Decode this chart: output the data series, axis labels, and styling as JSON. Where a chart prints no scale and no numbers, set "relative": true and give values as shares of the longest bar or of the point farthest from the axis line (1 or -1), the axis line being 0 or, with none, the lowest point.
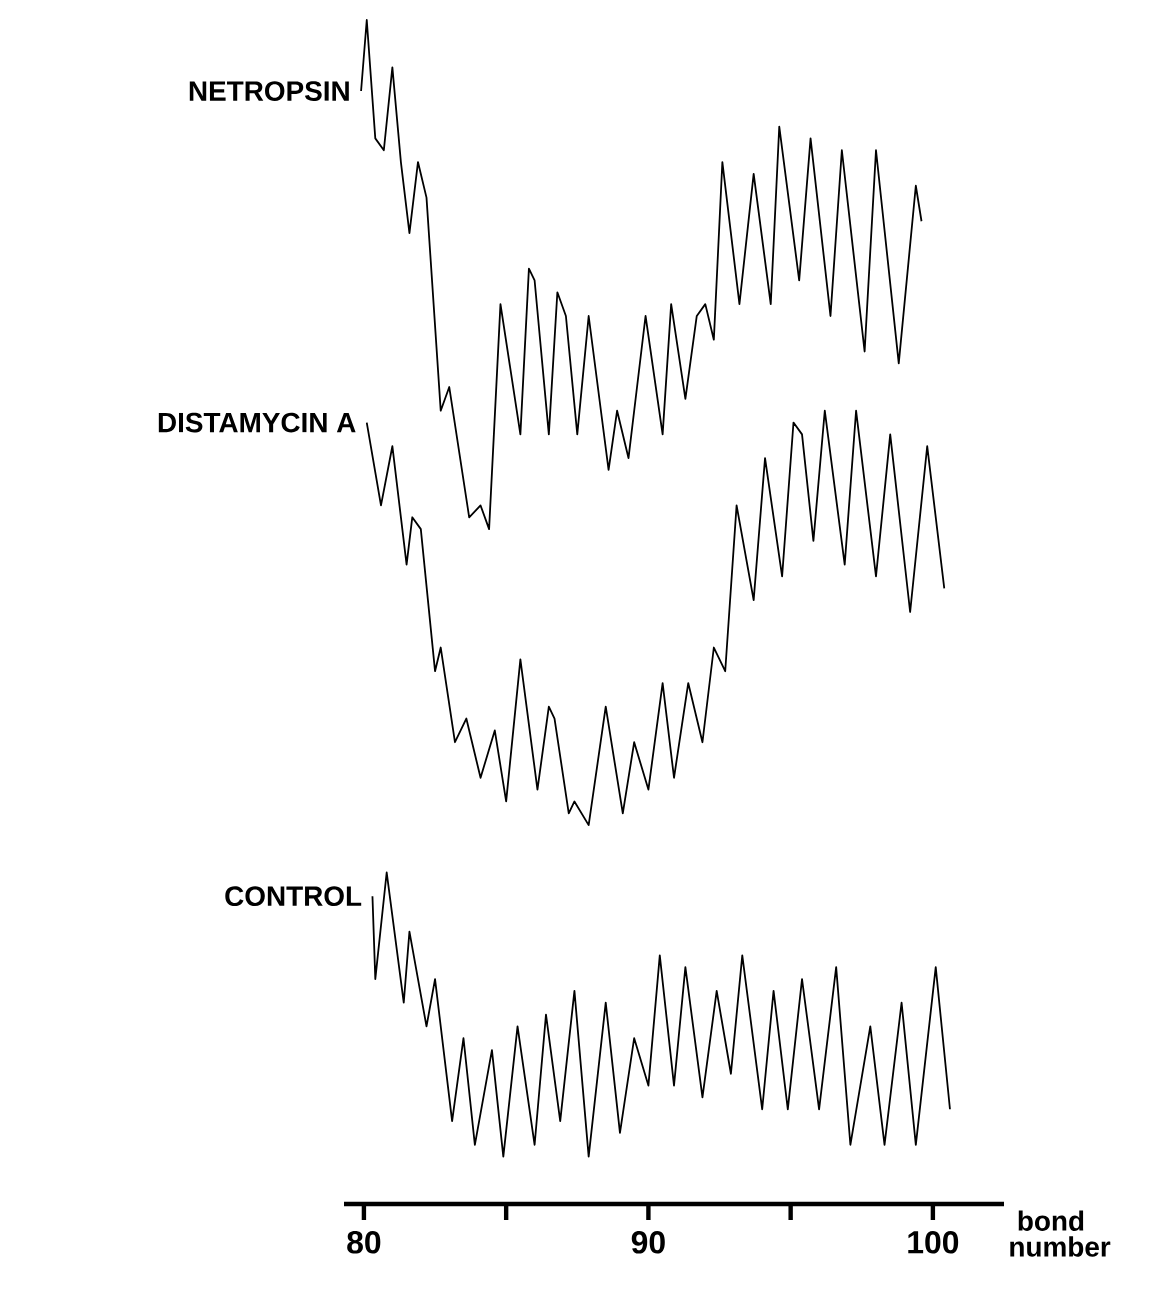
{
  "chart_data": {
    "type": "line",
    "relative": true,
    "xlabel": "bond number",
    "xlim": [
      79.3,
      102.5
    ],
    "xticks": [
      80,
      {
        "value": 85,
        "label": null
      },
      90,
      {
        "value": 95,
        "label": null
      },
      100
    ],
    "series": [
      {
        "name": "NETROPSIN",
        "color": "#000000",
        "x": [
          79.9,
          80.1,
          80.4,
          80.7,
          81.0,
          81.3,
          81.6,
          81.9,
          82.2,
          82.7,
          83.0,
          83.7,
          84.1,
          84.4,
          84.8,
          85.5,
          85.8,
          86.0,
          86.5,
          86.8,
          87.1,
          87.5,
          87.9,
          88.6,
          88.9,
          89.3,
          89.9,
          90.5,
          90.8,
          91.3,
          91.7,
          92.0,
          92.3,
          92.6,
          93.2,
          93.7,
          94.3,
          94.6,
          95.3,
          95.7,
          96.4,
          96.8,
          97.6,
          98.0,
          98.8,
          99.4,
          99.6
        ],
        "values": [
          0.94,
          1.0,
          0.9,
          0.89,
          0.96,
          0.88,
          0.82,
          0.88,
          0.85,
          0.67,
          0.69,
          0.58,
          0.59,
          0.57,
          0.76,
          0.65,
          0.79,
          0.78,
          0.65,
          0.77,
          0.75,
          0.65,
          0.75,
          0.62,
          0.67,
          0.63,
          0.75,
          0.65,
          0.76,
          0.68,
          0.75,
          0.76,
          0.73,
          0.88,
          0.76,
          0.87,
          0.76,
          0.91,
          0.78,
          0.9,
          0.75,
          0.89,
          0.72,
          0.89,
          0.71,
          0.86,
          0.83
        ]
      },
      {
        "name": "DISTAMYCIN A",
        "color": "#000000",
        "x": [
          80.1,
          80.6,
          81.0,
          81.5,
          81.7,
          82.0,
          82.5,
          82.7,
          83.2,
          83.6,
          84.1,
          84.6,
          85.0,
          85.5,
          86.1,
          86.5,
          86.7,
          87.2,
          87.4,
          87.9,
          88.5,
          89.1,
          89.5,
          90.0,
          90.5,
          90.9,
          91.4,
          91.9,
          92.3,
          92.7,
          93.1,
          93.7,
          94.1,
          94.7,
          95.1,
          95.4,
          95.8,
          96.2,
          96.9,
          97.3,
          98.0,
          98.5,
          99.2,
          99.8,
          100.4
        ],
        "values": [
          0.66,
          0.59,
          0.64,
          0.54,
          0.58,
          0.57,
          0.45,
          0.47,
          0.39,
          0.41,
          0.36,
          0.4,
          0.34,
          0.46,
          0.35,
          0.42,
          0.41,
          0.33,
          0.34,
          0.32,
          0.42,
          0.33,
          0.39,
          0.35,
          0.44,
          0.36,
          0.44,
          0.39,
          0.47,
          0.45,
          0.59,
          0.51,
          0.63,
          0.53,
          0.66,
          0.65,
          0.56,
          0.67,
          0.54,
          0.67,
          0.53,
          0.65,
          0.5,
          0.64,
          0.52
        ]
      },
      {
        "name": "CONTROL",
        "color": "#000000",
        "x": [
          80.3,
          80.4,
          80.8,
          81.4,
          81.6,
          82.2,
          82.5,
          83.1,
          83.5,
          83.9,
          84.5,
          84.9,
          85.4,
          86.0,
          86.4,
          86.9,
          87.4,
          87.9,
          88.5,
          89.0,
          89.5,
          90.0,
          90.4,
          90.9,
          91.3,
          91.9,
          92.4,
          92.9,
          93.3,
          94.0,
          94.4,
          94.9,
          95.4,
          96.0,
          96.6,
          97.1,
          97.8,
          98.3,
          98.9,
          99.4,
          100.1,
          100.6
        ],
        "values": [
          0.26,
          0.19,
          0.28,
          0.17,
          0.23,
          0.15,
          0.19,
          0.07,
          0.14,
          0.05,
          0.13,
          0.04,
          0.15,
          0.05,
          0.16,
          0.07,
          0.18,
          0.04,
          0.17,
          0.06,
          0.14,
          0.1,
          0.21,
          0.1,
          0.2,
          0.09,
          0.18,
          0.11,
          0.21,
          0.08,
          0.18,
          0.08,
          0.19,
          0.08,
          0.2,
          0.05,
          0.15,
          0.05,
          0.17,
          0.05,
          0.2,
          0.08
        ]
      }
    ]
  }
}
